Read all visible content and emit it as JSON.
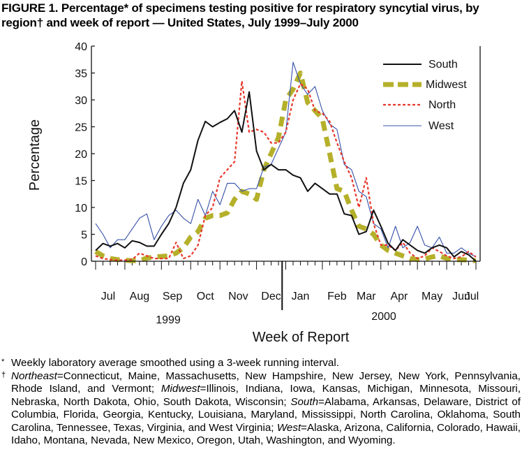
{
  "figure": {
    "title": "FIGURE 1. Percentage* of specimens testing positive for respiratory syncytial virus, by region† and week of report — United States, July 1999–July 2000"
  },
  "chart_data": {
    "type": "line",
    "ylabel": "Percentage",
    "xlabel": "Week of Report",
    "ylim": [
      0,
      40
    ],
    "yticks": [
      0,
      5,
      10,
      15,
      20,
      25,
      30,
      35,
      40
    ],
    "month_labels": [
      "Jul",
      "Aug",
      "Sep",
      "Oct",
      "Nov",
      "Dec",
      "Jan",
      "Feb",
      "Mar",
      "Apr",
      "May",
      "Jun",
      "Jul"
    ],
    "year_labels": [
      "1999",
      "2000"
    ],
    "week_count": 53,
    "x": [
      0,
      1,
      2,
      3,
      4,
      5,
      6,
      7,
      8,
      9,
      10,
      11,
      12,
      13,
      14,
      15,
      16,
      17,
      18,
      19,
      20,
      21,
      22,
      23,
      24,
      25,
      26,
      27,
      28,
      29,
      30,
      31,
      32,
      33,
      34,
      35,
      36,
      37,
      38,
      39,
      40,
      41,
      42,
      43,
      44,
      45,
      46,
      47,
      48,
      49,
      50,
      51,
      52
    ],
    "series": [
      {
        "name": "South",
        "style": "solid-thick",
        "color": "#111111",
        "values": [
          2.0,
          3.3,
          2.8,
          3.3,
          2.5,
          3.8,
          3.5,
          2.8,
          2.8,
          5.0,
          7.0,
          10.0,
          14.5,
          17.0,
          22.5,
          26.0,
          25.0,
          25.8,
          26.5,
          28.0,
          24.0,
          31.5,
          20.5,
          17.0,
          18.0,
          17.0,
          17.0,
          16.0,
          15.5,
          13.0,
          14.5,
          13.5,
          12.5,
          12.5,
          8.8,
          8.5,
          5.0,
          5.5,
          9.5,
          6.5,
          3.3,
          2.0,
          4.0,
          3.0,
          2.0,
          1.5,
          2.5,
          3.0,
          2.5,
          0.8,
          1.8,
          1.2,
          0.0
        ]
      },
      {
        "name": "Midwest",
        "style": "heavy-dash",
        "color": "#b5b02a",
        "values": [
          1.8,
          1.0,
          0.5,
          0.3,
          0.2,
          0.1,
          0.1,
          0.6,
          0.8,
          0.9,
          1.0,
          1.5,
          2.5,
          4.5,
          5.5,
          8.0,
          8.5,
          8.5,
          9.0,
          11.5,
          13.0,
          12.5,
          11.5,
          17.0,
          20.0,
          23.0,
          30.0,
          32.0,
          35.0,
          29.5,
          28.0,
          26.5,
          20.0,
          13.5,
          13.0,
          9.5,
          6.5,
          6.0,
          5.0,
          3.0,
          2.0,
          1.5,
          1.0,
          0.5,
          0.3,
          0.4,
          0.8,
          1.0,
          0.5,
          0.3,
          0.3,
          0.2,
          0.1
        ]
      },
      {
        "name": "North",
        "style": "dotted",
        "color": "#e8382c",
        "values": [
          1.0,
          0.5,
          0.3,
          0.2,
          0.2,
          0.3,
          1.5,
          1.0,
          0.5,
          0.5,
          0.5,
          3.5,
          0.5,
          1.0,
          3.0,
          8.5,
          10.0,
          15.5,
          17.0,
          18.5,
          33.5,
          24.0,
          24.5,
          24.0,
          22.0,
          22.0,
          24.0,
          30.0,
          33.0,
          32.0,
          28.0,
          27.5,
          26.0,
          22.0,
          18.5,
          15.5,
          10.0,
          15.5,
          7.0,
          3.0,
          3.0,
          2.0,
          3.5,
          1.5,
          0.5,
          1.0,
          2.5,
          1.8,
          1.0,
          0.5,
          0.8,
          1.8,
          0.8
        ]
      },
      {
        "name": "West",
        "style": "solid-thin",
        "color": "#3450a8",
        "values": [
          7.0,
          5.0,
          2.5,
          4.0,
          4.0,
          6.0,
          8.0,
          8.8,
          4.0,
          6.5,
          8.5,
          9.5,
          8.0,
          7.0,
          11.5,
          8.5,
          13.0,
          10.5,
          14.5,
          14.5,
          13.0,
          13.5,
          13.5,
          17.5,
          18.0,
          21.0,
          24.0,
          37.0,
          33.0,
          31.0,
          32.5,
          28.0,
          25.5,
          24.5,
          18.0,
          17.0,
          13.0,
          12.0,
          7.0,
          6.0,
          2.5,
          6.5,
          2.5,
          3.5,
          6.5,
          3.0,
          2.5,
          4.5,
          1.5,
          1.5,
          2.5,
          1.5,
          0.8
        ]
      }
    ]
  },
  "footnotes": [
    {
      "mark": "*",
      "text": "Weekly laboratory average smoothed using a 3-week running interval."
    },
    {
      "mark": "†",
      "ne_term": "Northeast",
      "ne_text": "=Connecticut, Maine, Massachusetts, New Hampshire, New Jersey, New York, Pennsylvania, Rhode Island, and Vermont; ",
      "mw_term": "Midwest",
      "mw_text": "=Illinois, Indiana, Iowa, Kansas, Michigan, Minnesota, Missouri, Nebraska, North Dakota, Ohio, South Dakota, Wisconsin; ",
      "s_term": "South",
      "s_text": "=Alabama, Arkansas, Delaware, District of Columbia, Florida, Georgia, Kentucky, Louisiana, Maryland, Mississippi, North Carolina, Oklahoma, South Carolina, Tennessee, Texas, Virginia, and West Virginia; ",
      "w_term": "West",
      "w_text": "=Alaska, Arizona, California, Colorado, Hawaii, Idaho, Montana, Nevada, New Mexico, Oregon, Utah, Washington, and Wyoming."
    }
  ]
}
